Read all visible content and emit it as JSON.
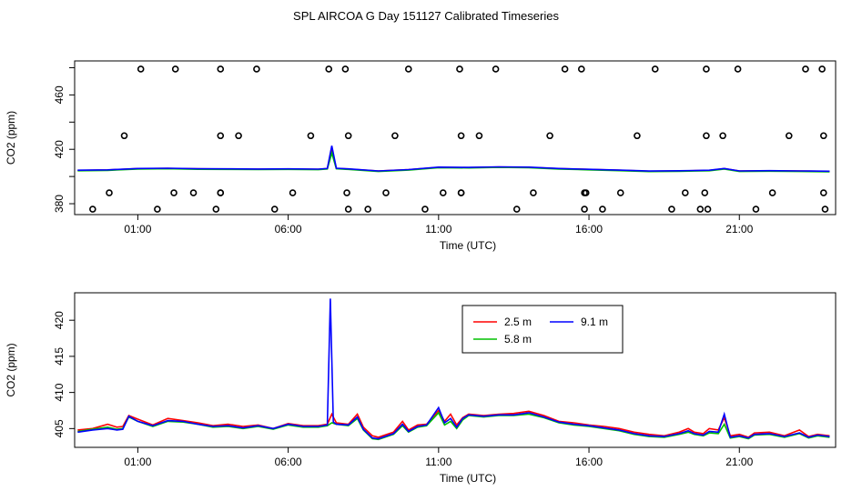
{
  "title": "SPL AIRCOA G  Day 151127  Calibrated Timeseries",
  "chart_data": [
    {
      "type": "scatter-line",
      "xlabel": "Time (UTC)",
      "ylabel": "CO2 (ppm)",
      "x_ticks": [
        "01:00",
        "06:00",
        "11:00",
        "16:00",
        "21:00"
      ],
      "x_tick_hours": [
        1,
        6,
        11,
        16,
        21
      ],
      "xlim_hours": [
        -1.1,
        24.2
      ],
      "y_ticks": [
        380,
        420,
        460
      ],
      "y_minor_ticks": [
        380,
        400,
        420,
        440,
        460,
        480
      ],
      "ylim": [
        372,
        485
      ],
      "scatter_points": {
        "hours": [
          -0.5,
          0.05,
          0.55,
          1.1,
          1.65,
          2.25,
          2.2,
          2.85,
          3.6,
          3.75,
          3.75,
          3.75,
          3.75,
          4.35,
          4.95,
          5.55,
          6.15,
          6.75,
          7.35,
          7.9,
          7.95,
          8.0,
          8.0,
          8.65,
          9.25,
          9.55,
          10.0,
          10.55,
          11.15,
          11.7,
          11.75,
          11.75,
          11.75,
          12.35,
          12.9,
          13.6,
          14.15,
          14.7,
          15.2,
          15.75,
          15.85,
          15.85,
          15.9,
          16.45,
          17.05,
          17.6,
          18.2,
          18.75,
          19.2,
          19.7,
          19.85,
          19.9,
          19.9,
          19.95,
          20.45,
          20.95,
          21.55,
          22.1,
          22.65,
          23.2,
          23.75,
          23.8,
          23.8,
          23.85
        ],
        "values": [
          376,
          388,
          430,
          479,
          376,
          479,
          388,
          388,
          376,
          479,
          430,
          388,
          388,
          430,
          479,
          376,
          388,
          430,
          479,
          479,
          388,
          376,
          430,
          376,
          388,
          430,
          479,
          376,
          388,
          479,
          430,
          388,
          388,
          430,
          479,
          376,
          388,
          430,
          479,
          479,
          388,
          376,
          388,
          376,
          388,
          430,
          479,
          376,
          388,
          376,
          388,
          479,
          430,
          376,
          430,
          479,
          376,
          388,
          430,
          479,
          479,
          388,
          430,
          376
        ]
      },
      "series": [
        {
          "name": "",
          "color": "#ff0000"
        },
        {
          "name": "",
          "color": "#00c000"
        },
        {
          "name": "",
          "color": "#0000ff"
        }
      ],
      "base_series_points": [
        [
          -1.0,
          404.5
        ],
        [
          0.0,
          404.8
        ],
        [
          1.0,
          405.8
        ],
        [
          2.0,
          406.0
        ],
        [
          3.0,
          405.6
        ],
        [
          4.0,
          405.5
        ],
        [
          5.0,
          405.4
        ],
        [
          6.0,
          405.5
        ],
        [
          7.0,
          405.3
        ],
        [
          7.3,
          405.8
        ],
        [
          7.45,
          422.5
        ],
        [
          7.6,
          406.0
        ],
        [
          8.0,
          405.5
        ],
        [
          9.0,
          404.0
        ],
        [
          10.0,
          405.0
        ],
        [
          11.0,
          406.8
        ],
        [
          12.0,
          406.6
        ],
        [
          13.0,
          407.0
        ],
        [
          14.0,
          406.8
        ],
        [
          15.0,
          405.8
        ],
        [
          16.0,
          405.2
        ],
        [
          17.0,
          404.6
        ],
        [
          18.0,
          403.9
        ],
        [
          19.0,
          404.1
        ],
        [
          20.0,
          404.5
        ],
        [
          20.5,
          405.8
        ],
        [
          21.0,
          404.0
        ],
        [
          22.0,
          404.2
        ],
        [
          23.0,
          404.0
        ],
        [
          24.0,
          403.8
        ]
      ]
    },
    {
      "type": "line",
      "xlabel": "Time (UTC)",
      "ylabel": "CO2 (ppm)",
      "x_ticks": [
        "01:00",
        "06:00",
        "11:00",
        "16:00",
        "21:00"
      ],
      "x_tick_hours": [
        1,
        6,
        11,
        16,
        21
      ],
      "xlim_hours": [
        -1.1,
        24.2
      ],
      "y_ticks": [
        405,
        410,
        415,
        420
      ],
      "ylim": [
        402.4,
        423.8
      ],
      "legend": {
        "position": "top-center",
        "entries": [
          {
            "name": "2.5 m",
            "color": "#ff0000"
          },
          {
            "name": "5.8 m",
            "color": "#00c000"
          },
          {
            "name": "9.1 m",
            "color": "#0000ff"
          }
        ]
      },
      "series": [
        {
          "name": "2.5 m",
          "color": "#ff0000",
          "points": [
            [
              -1.0,
              404.8
            ],
            [
              -0.5,
              405.0
            ],
            [
              0.0,
              405.6
            ],
            [
              0.3,
              405.2
            ],
            [
              0.5,
              405.3
            ],
            [
              0.7,
              406.8
            ],
            [
              1.0,
              406.3
            ],
            [
              1.5,
              405.5
            ],
            [
              2.0,
              406.4
            ],
            [
              2.5,
              406.1
            ],
            [
              3.0,
              405.8
            ],
            [
              3.5,
              405.4
            ],
            [
              4.0,
              405.6
            ],
            [
              4.5,
              405.3
            ],
            [
              5.0,
              405.5
            ],
            [
              5.5,
              405.0
            ],
            [
              6.0,
              405.7
            ],
            [
              6.5,
              405.4
            ],
            [
              7.0,
              405.4
            ],
            [
              7.3,
              405.6
            ],
            [
              7.45,
              407.0
            ],
            [
              7.6,
              405.8
            ],
            [
              8.0,
              405.6
            ],
            [
              8.3,
              407.0
            ],
            [
              8.5,
              405.2
            ],
            [
              8.8,
              404.0
            ],
            [
              9.0,
              403.8
            ],
            [
              9.5,
              404.5
            ],
            [
              9.8,
              406.0
            ],
            [
              10.0,
              404.8
            ],
            [
              10.3,
              405.5
            ],
            [
              10.6,
              405.6
            ],
            [
              11.0,
              407.5
            ],
            [
              11.2,
              406.0
            ],
            [
              11.4,
              407.0
            ],
            [
              11.6,
              405.5
            ],
            [
              11.8,
              406.5
            ],
            [
              12.0,
              407.0
            ],
            [
              12.5,
              406.8
            ],
            [
              13.0,
              407.0
            ],
            [
              13.5,
              407.1
            ],
            [
              14.0,
              407.4
            ],
            [
              14.5,
              406.8
            ],
            [
              15.0,
              406.0
            ],
            [
              15.5,
              405.8
            ],
            [
              16.0,
              405.5
            ],
            [
              16.5,
              405.3
            ],
            [
              17.0,
              405.0
            ],
            [
              17.5,
              404.5
            ],
            [
              18.0,
              404.2
            ],
            [
              18.5,
              404.0
            ],
            [
              19.0,
              404.5
            ],
            [
              19.3,
              405.0
            ],
            [
              19.5,
              404.5
            ],
            [
              19.8,
              404.3
            ],
            [
              20.0,
              405.0
            ],
            [
              20.3,
              404.8
            ],
            [
              20.5,
              406.5
            ],
            [
              20.7,
              404.0
            ],
            [
              21.0,
              404.2
            ],
            [
              21.3,
              403.8
            ],
            [
              21.5,
              404.4
            ],
            [
              22.0,
              404.5
            ],
            [
              22.5,
              404.0
            ],
            [
              23.0,
              404.8
            ],
            [
              23.3,
              403.9
            ],
            [
              23.6,
              404.2
            ],
            [
              24.0,
              404.0
            ]
          ]
        },
        {
          "name": "5.8 m",
          "color": "#00c000",
          "points": [
            [
              -1.0,
              404.6
            ],
            [
              -0.5,
              404.9
            ],
            [
              0.0,
              405.2
            ],
            [
              0.3,
              404.9
            ],
            [
              0.5,
              405.0
            ],
            [
              0.7,
              406.6
            ],
            [
              1.0,
              406.0
            ],
            [
              1.5,
              405.3
            ],
            [
              2.0,
              406.0
            ],
            [
              2.5,
              405.9
            ],
            [
              3.0,
              405.6
            ],
            [
              3.5,
              405.2
            ],
            [
              4.0,
              405.3
            ],
            [
              4.5,
              405.0
            ],
            [
              5.0,
              405.3
            ],
            [
              5.5,
              404.9
            ],
            [
              6.0,
              405.5
            ],
            [
              6.5,
              405.2
            ],
            [
              7.0,
              405.2
            ],
            [
              7.3,
              405.4
            ],
            [
              7.45,
              405.8
            ],
            [
              7.6,
              405.6
            ],
            [
              8.0,
              405.4
            ],
            [
              8.3,
              406.4
            ],
            [
              8.5,
              404.8
            ],
            [
              8.8,
              403.6
            ],
            [
              9.0,
              403.5
            ],
            [
              9.5,
              404.2
            ],
            [
              9.8,
              405.4
            ],
            [
              10.0,
              404.5
            ],
            [
              10.3,
              405.2
            ],
            [
              10.6,
              405.4
            ],
            [
              11.0,
              407.2
            ],
            [
              11.2,
              405.5
            ],
            [
              11.4,
              406.0
            ],
            [
              11.6,
              405.0
            ],
            [
              11.8,
              406.2
            ],
            [
              12.0,
              406.8
            ],
            [
              12.5,
              406.6
            ],
            [
              13.0,
              406.8
            ],
            [
              13.5,
              406.8
            ],
            [
              14.0,
              407.0
            ],
            [
              14.5,
              406.5
            ],
            [
              15.0,
              405.8
            ],
            [
              15.5,
              405.5
            ],
            [
              16.0,
              405.3
            ],
            [
              16.5,
              405.0
            ],
            [
              17.0,
              404.7
            ],
            [
              17.5,
              404.2
            ],
            [
              18.0,
              403.9
            ],
            [
              18.5,
              403.8
            ],
            [
              19.0,
              404.2
            ],
            [
              19.3,
              404.5
            ],
            [
              19.5,
              404.2
            ],
            [
              19.8,
              404.0
            ],
            [
              20.0,
              404.4
            ],
            [
              20.3,
              404.3
            ],
            [
              20.5,
              405.6
            ],
            [
              20.7,
              403.7
            ],
            [
              21.0,
              403.9
            ],
            [
              21.3,
              403.6
            ],
            [
              21.5,
              404.1
            ],
            [
              22.0,
              404.2
            ],
            [
              22.5,
              403.8
            ],
            [
              23.0,
              404.3
            ],
            [
              23.3,
              403.7
            ],
            [
              23.6,
              404.0
            ],
            [
              24.0,
              403.8
            ]
          ]
        },
        {
          "name": "9.1 m",
          "color": "#0000ff",
          "points": [
            [
              -1.0,
              404.5
            ],
            [
              -0.5,
              404.8
            ],
            [
              0.0,
              405.0
            ],
            [
              0.3,
              404.8
            ],
            [
              0.5,
              404.9
            ],
            [
              0.7,
              406.7
            ],
            [
              1.0,
              406.0
            ],
            [
              1.5,
              405.4
            ],
            [
              2.0,
              406.1
            ],
            [
              2.5,
              406.0
            ],
            [
              3.0,
              405.6
            ],
            [
              3.5,
              405.3
            ],
            [
              4.0,
              405.4
            ],
            [
              4.5,
              405.1
            ],
            [
              5.0,
              405.4
            ],
            [
              5.5,
              405.0
            ],
            [
              6.0,
              405.6
            ],
            [
              6.5,
              405.3
            ],
            [
              7.0,
              405.3
            ],
            [
              7.3,
              405.5
            ],
            [
              7.4,
              423.0
            ],
            [
              7.5,
              405.9
            ],
            [
              7.6,
              405.6
            ],
            [
              8.0,
              405.5
            ],
            [
              8.3,
              406.6
            ],
            [
              8.5,
              404.9
            ],
            [
              8.8,
              403.7
            ],
            [
              9.0,
              403.6
            ],
            [
              9.5,
              404.3
            ],
            [
              9.8,
              405.6
            ],
            [
              10.0,
              404.6
            ],
            [
              10.3,
              405.3
            ],
            [
              10.6,
              405.5
            ],
            [
              11.0,
              407.9
            ],
            [
              11.2,
              405.8
            ],
            [
              11.4,
              406.4
            ],
            [
              11.6,
              405.2
            ],
            [
              11.8,
              406.4
            ],
            [
              12.0,
              406.9
            ],
            [
              12.5,
              406.7
            ],
            [
              13.0,
              406.9
            ],
            [
              13.5,
              406.9
            ],
            [
              14.0,
              407.2
            ],
            [
              14.5,
              406.6
            ],
            [
              15.0,
              405.9
            ],
            [
              15.5,
              405.6
            ],
            [
              16.0,
              405.4
            ],
            [
              16.5,
              405.1
            ],
            [
              17.0,
              404.8
            ],
            [
              17.5,
              404.3
            ],
            [
              18.0,
              404.0
            ],
            [
              18.5,
              403.9
            ],
            [
              19.0,
              404.3
            ],
            [
              19.3,
              404.7
            ],
            [
              19.5,
              404.3
            ],
            [
              19.8,
              404.1
            ],
            [
              20.0,
              404.6
            ],
            [
              20.3,
              404.5
            ],
            [
              20.5,
              407.0
            ],
            [
              20.7,
              403.8
            ],
            [
              21.0,
              404.0
            ],
            [
              21.3,
              403.7
            ],
            [
              21.5,
              404.2
            ],
            [
              22.0,
              404.3
            ],
            [
              22.5,
              403.9
            ],
            [
              23.0,
              404.4
            ],
            [
              23.3,
              403.8
            ],
            [
              23.6,
              404.1
            ],
            [
              24.0,
              403.9
            ]
          ]
        }
      ]
    }
  ]
}
